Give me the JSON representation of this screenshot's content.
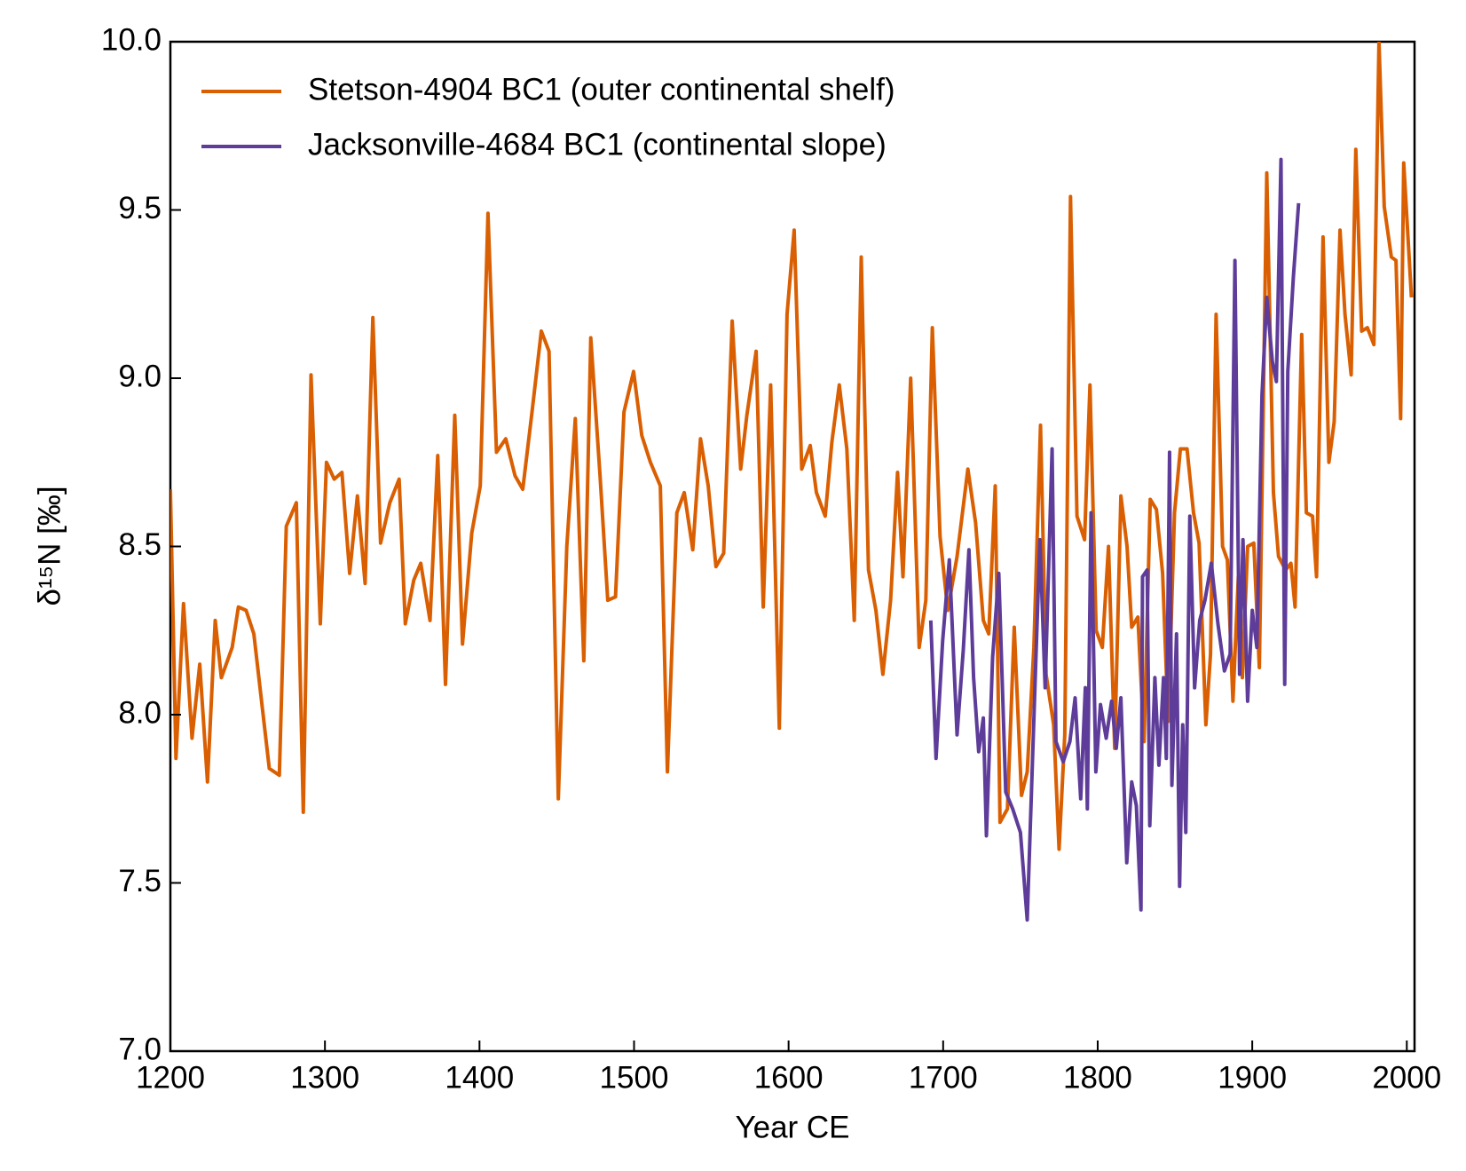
{
  "chart_data": {
    "type": "line",
    "xlabel": "Year CE",
    "ylabel": "δ¹⁵N [‰]",
    "xlim": [
      1200,
      2005
    ],
    "ylim": [
      7.0,
      10.0
    ],
    "xticks": [
      1200,
      1300,
      1400,
      1500,
      1600,
      1700,
      1800,
      1900,
      2000
    ],
    "yticks": [
      {
        "value": 7,
        "label": "7.0"
      },
      {
        "value": 7.5,
        "label": "7.5"
      },
      {
        "value": 8,
        "label": "8.0"
      },
      {
        "value": 8.5,
        "label": "8.5"
      },
      {
        "value": 9,
        "label": "9.0"
      },
      {
        "value": 9.5,
        "label": "9.5"
      },
      {
        "value": 10,
        "label": "10.0"
      }
    ],
    "legend": "upper left",
    "series": [
      {
        "name": "Stetson-4904 BC1 (outer continental shelf)",
        "color": "#d95f02",
        "x": [
          1200,
          1203.6,
          1208.5,
          1214,
          1219,
          1224,
          1229,
          1233,
          1240,
          1244,
          1249,
          1254,
          1264,
          1270.5,
          1275,
          1281.5,
          1286,
          1291,
          1297,
          1301,
          1306,
          1311,
          1316,
          1321,
          1326,
          1331,
          1336,
          1342,
          1348,
          1352,
          1357.5,
          1362,
          1368,
          1373,
          1378,
          1384,
          1389,
          1395,
          1400.5,
          1405.5,
          1411,
          1417,
          1423,
          1428,
          1434,
          1440,
          1445,
          1451,
          1456.5,
          1462,
          1467.5,
          1472,
          1478,
          1483,
          1488,
          1493.5,
          1499.7,
          1505,
          1510.6,
          1517,
          1521.6,
          1527.7,
          1532.5,
          1538,
          1543,
          1548,
          1553,
          1558,
          1563.5,
          1569,
          1573,
          1579,
          1583.6,
          1588.4,
          1594,
          1599,
          1603.6,
          1608.5,
          1614,
          1618,
          1623.7,
          1628,
          1632.8,
          1637.7,
          1642.5,
          1647,
          1651.7,
          1656.5,
          1661,
          1666,
          1670.5,
          1674,
          1679,
          1684.5,
          1688.8,
          1693,
          1698,
          1703,
          1709,
          1716,
          1721,
          1726,
          1729.5,
          1733.7,
          1736.8,
          1741.6,
          1746,
          1750.7,
          1754.4,
          1758.7,
          1763,
          1766.6,
          1771.5,
          1775,
          1778.7,
          1782.4,
          1786.6,
          1791.5,
          1795,
          1799,
          1803,
          1807,
          1811,
          1815,
          1819,
          1822,
          1826,
          1830,
          1834,
          1838,
          1842,
          1845.6,
          1849.7,
          1853.5,
          1857.8,
          1862,
          1865.6,
          1870,
          1873,
          1876.6,
          1880.8,
          1883.9,
          1887.5,
          1891,
          1893.6,
          1897,
          1901,
          1904.6,
          1909.4,
          1913.7,
          1917,
          1921.6,
          1925,
          1927.7,
          1932,
          1935,
          1939,
          1941.6,
          1945.8,
          1949.6,
          1953,
          1956.8,
          1960,
          1964,
          1967,
          1970.8,
          1974.5,
          1978.7,
          1982,
          1985.4,
          1990,
          1993,
          1996,
          1998,
          2003
        ],
        "values": [
          8.67,
          7.87,
          8.33,
          7.93,
          8.15,
          7.8,
          8.28,
          8.11,
          8.2,
          8.32,
          8.31,
          8.24,
          7.84,
          7.82,
          8.56,
          8.63,
          7.71,
          9.01,
          8.27,
          8.75,
          8.7,
          8.72,
          8.42,
          8.65,
          8.39,
          9.18,
          8.51,
          8.63,
          8.7,
          8.27,
          8.4,
          8.45,
          8.28,
          8.77,
          8.09,
          8.89,
          8.21,
          8.54,
          8.68,
          9.49,
          8.78,
          8.82,
          8.71,
          8.67,
          8.9,
          9.14,
          9.08,
          7.75,
          8.5,
          8.88,
          8.16,
          9.12,
          8.71,
          8.34,
          8.35,
          8.9,
          9.02,
          8.83,
          8.75,
          8.68,
          7.83,
          8.6,
          8.66,
          8.49,
          8.82,
          8.68,
          8.44,
          8.48,
          9.17,
          8.73,
          8.89,
          9.08,
          8.32,
          8.98,
          7.96,
          9.19,
          9.44,
          8.73,
          8.8,
          8.66,
          8.59,
          8.81,
          8.98,
          8.79,
          8.28,
          9.36,
          8.43,
          8.31,
          8.12,
          8.34,
          8.72,
          8.41,
          9.0,
          8.2,
          8.34,
          9.15,
          8.53,
          8.31,
          8.47,
          8.73,
          8.57,
          8.28,
          8.24,
          8.68,
          7.68,
          7.72,
          8.26,
          7.76,
          7.83,
          8.2,
          8.86,
          8.12,
          7.97,
          7.6,
          7.94,
          9.54,
          8.59,
          8.52,
          8.98,
          8.25,
          8.2,
          8.5,
          7.9,
          8.65,
          8.5,
          8.26,
          8.29,
          7.92,
          8.64,
          8.61,
          8.42,
          7.98,
          8.6,
          8.79,
          8.79,
          8.6,
          8.51,
          7.97,
          8.18,
          9.19,
          8.5,
          8.46,
          8.04,
          8.41,
          8.11,
          8.5,
          8.51,
          8.14,
          9.61,
          8.66,
          8.47,
          8.43,
          8.45,
          8.32,
          9.13,
          8.6,
          8.59,
          8.41,
          9.42,
          8.75,
          8.87,
          9.44,
          9.19,
          9.01,
          9.68,
          9.14,
          9.15,
          9.1,
          10.0,
          9.51,
          9.36,
          9.35,
          8.88,
          9.64,
          9.24
        ]
      },
      {
        "name": "Jacksonville-4684 BC1 (continental slope)",
        "color": "#5e3c99",
        "x": [
          1692,
          1695.4,
          1699.7,
          1704,
          1709,
          1713,
          1716.7,
          1719.7,
          1723,
          1726,
          1728,
          1732,
          1736,
          1740.5,
          1745,
          1750,
          1754.4,
          1758,
          1762.6,
          1766,
          1770.5,
          1773,
          1777.7,
          1782,
          1785.4,
          1789,
          1792,
          1793.3,
          1795.7,
          1798.8,
          1801.8,
          1805.5,
          1809,
          1812,
          1815,
          1818.8,
          1822,
          1825,
          1828,
          1829,
          1832,
          1833.7,
          1837,
          1839.6,
          1842.6,
          1844.4,
          1846.5,
          1848,
          1851,
          1853,
          1855,
          1857,
          1859.6,
          1862.7,
          1866,
          1869.4,
          1873.5,
          1877.8,
          1882,
          1885.7,
          1888.8,
          1891.8,
          1894,
          1897,
          1900,
          1903,
          1906.3,
          1909.4,
          1913,
          1915.6,
          1918.6,
          1921,
          1923,
          1926.6,
          1930
        ],
        "values": [
          8.28,
          7.87,
          8.22,
          8.46,
          7.94,
          8.19,
          8.49,
          8.11,
          7.89,
          7.99,
          7.64,
          8.17,
          8.42,
          7.77,
          7.72,
          7.65,
          7.39,
          7.89,
          8.52,
          8.08,
          8.79,
          7.92,
          7.86,
          7.92,
          8.05,
          7.75,
          8.08,
          7.72,
          8.6,
          7.83,
          8.03,
          7.93,
          8.04,
          7.9,
          8.05,
          7.56,
          7.8,
          7.73,
          7.42,
          8.41,
          8.43,
          7.67,
          8.11,
          7.85,
          8.11,
          7.87,
          8.78,
          7.79,
          8.24,
          7.49,
          7.97,
          7.65,
          8.59,
          8.08,
          8.28,
          8.34,
          8.45,
          8.27,
          8.13,
          8.18,
          9.35,
          8.12,
          8.52,
          8.04,
          8.31,
          8.2,
          8.95,
          9.24,
          9.05,
          8.99,
          9.65,
          8.09,
          9.02,
          9.3,
          9.52
        ]
      }
    ]
  }
}
